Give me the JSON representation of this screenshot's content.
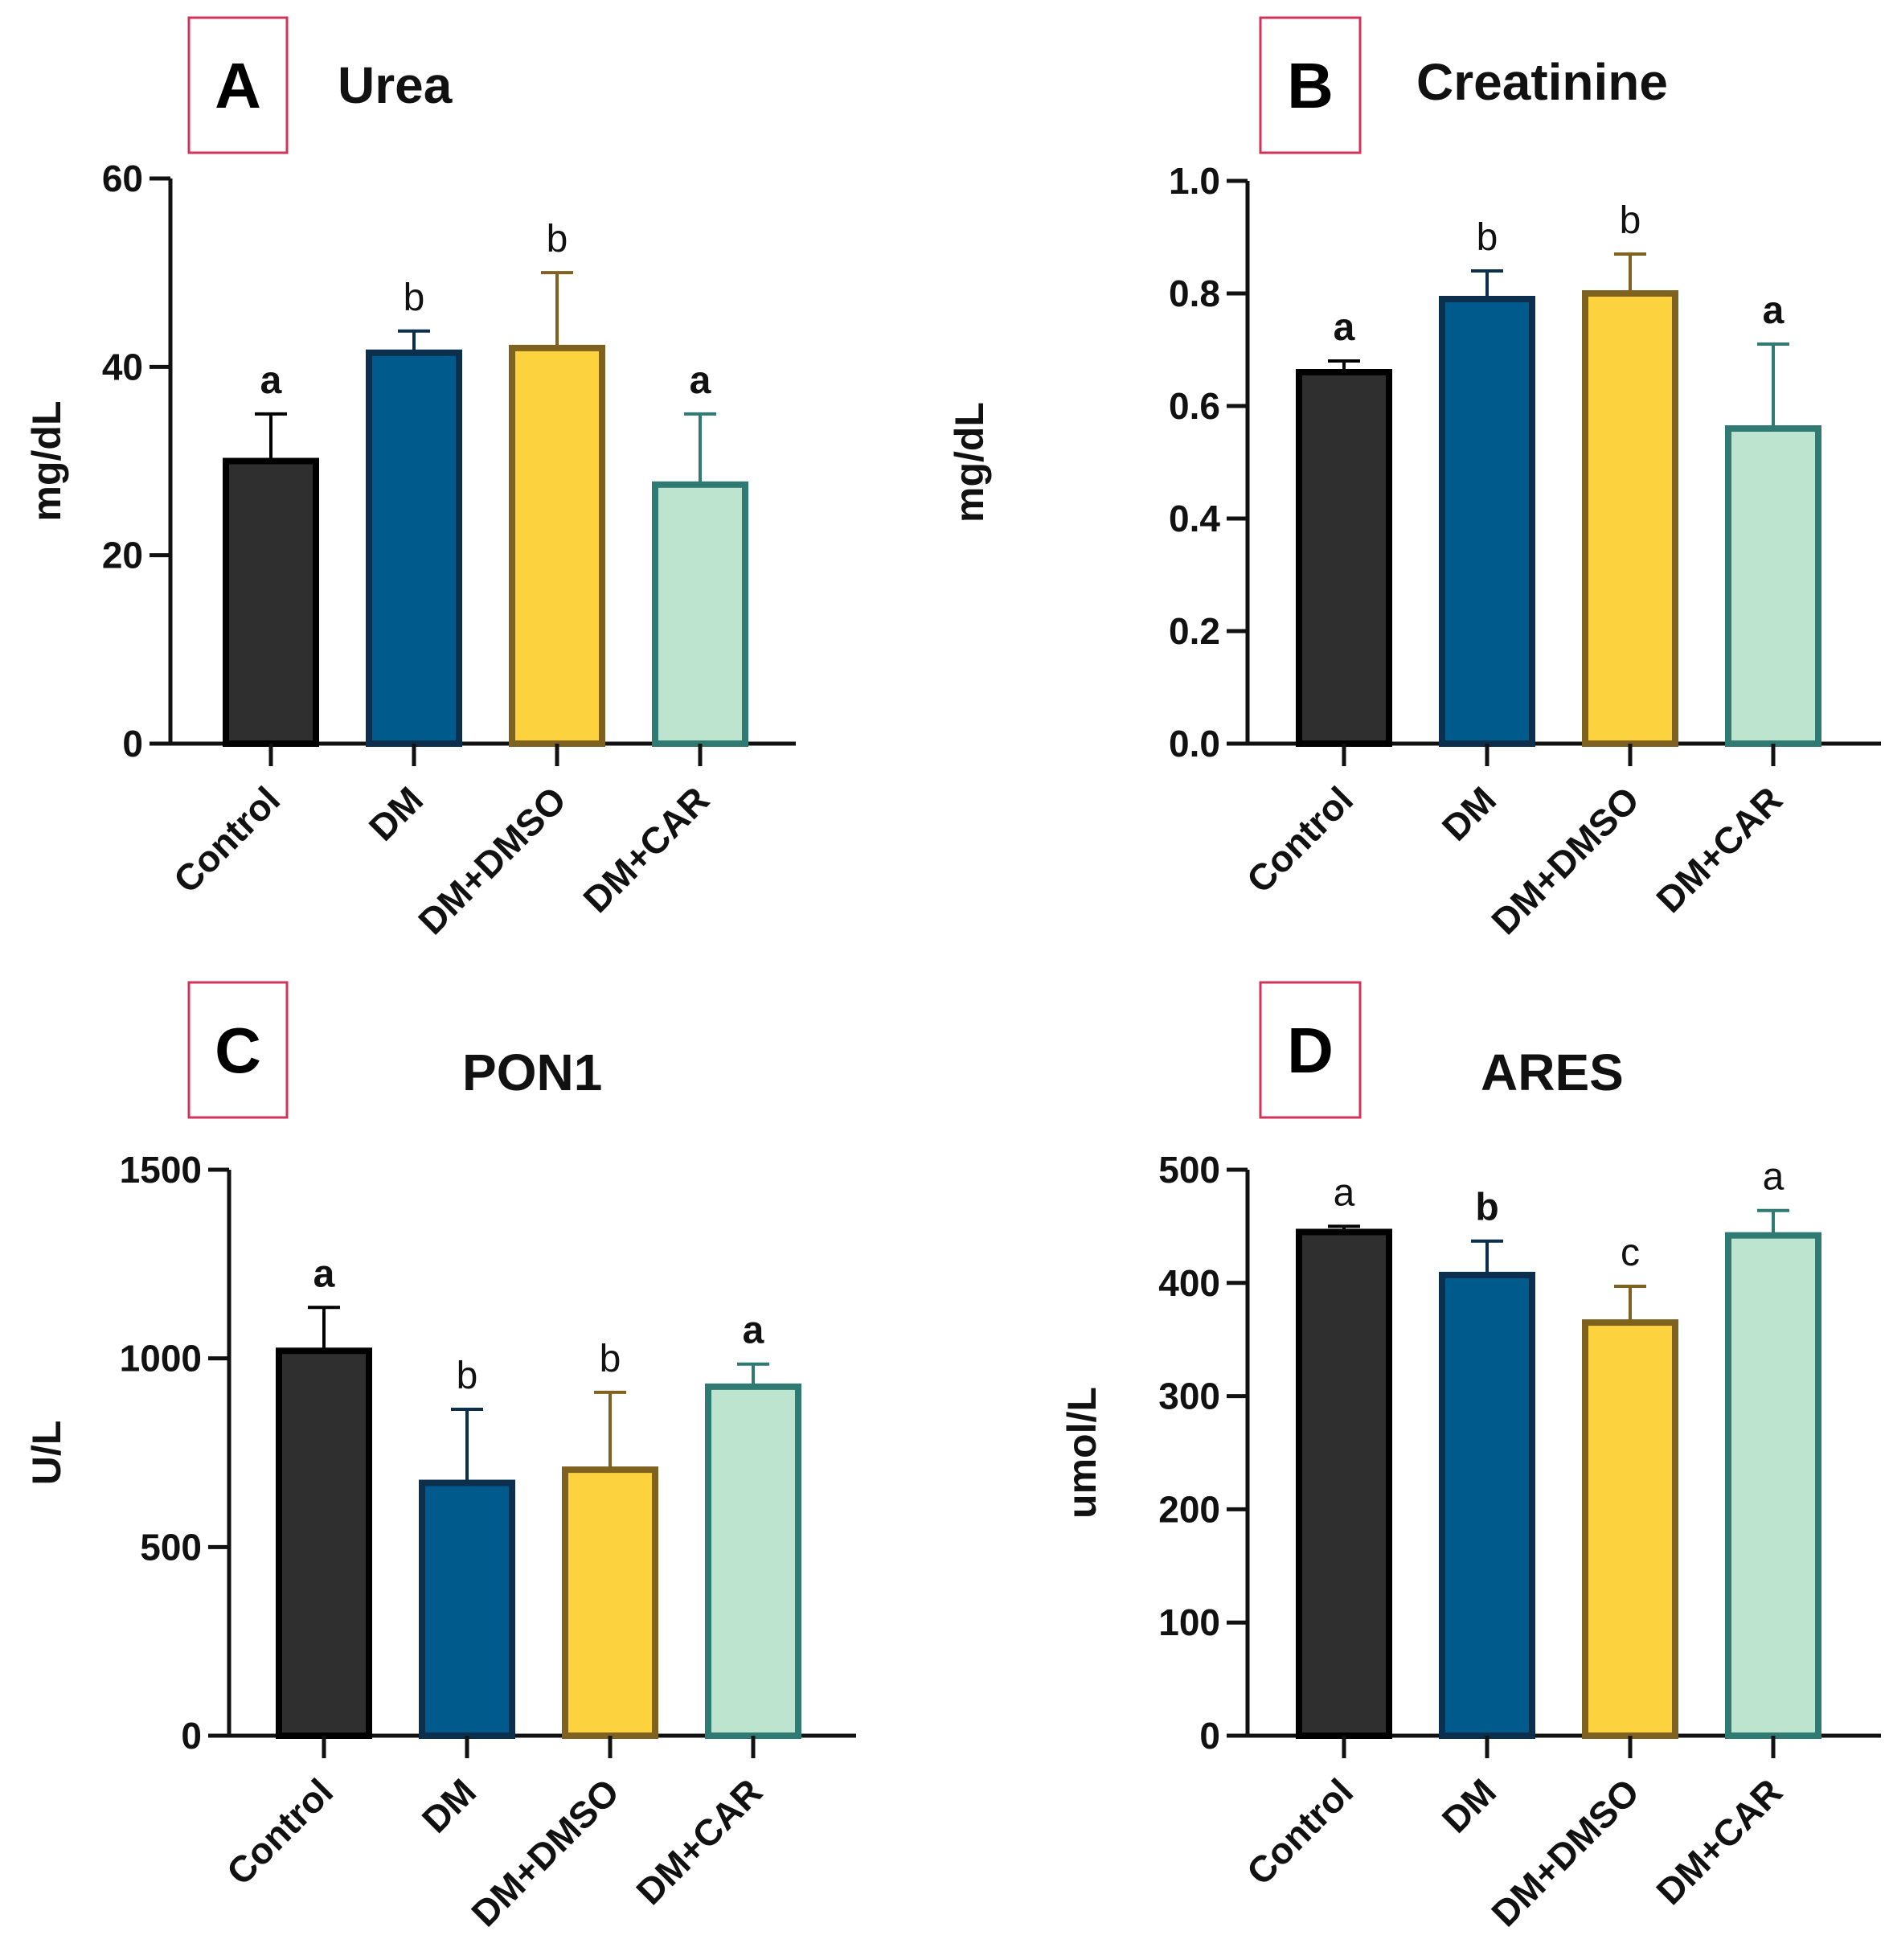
{
  "chart_data": [
    {
      "type": "bar",
      "panel_label": "A",
      "title": "Urea",
      "ylabel": "mg/dL",
      "xlabel": "",
      "ylim": [
        0,
        60
      ],
      "yticks": [
        0,
        20,
        40,
        60
      ],
      "ytick_labels": [
        "0",
        "20",
        "40",
        "60"
      ],
      "categories": [
        "Control",
        "DM",
        "DM+DMSO",
        "DM+CAR"
      ],
      "values": [
        30,
        41.5,
        42,
        27.5
      ],
      "errors": [
        5,
        2.3,
        8,
        7.5
      ],
      "significance": [
        "a",
        "b",
        "b",
        "a"
      ],
      "significance_bold": [
        true,
        false,
        false,
        true
      ]
    },
    {
      "type": "bar",
      "panel_label": "B",
      "title": "Creatinine",
      "ylabel": "mg/dL",
      "xlabel": "",
      "ylim": [
        0,
        1.0
      ],
      "yticks": [
        0,
        0.2,
        0.4,
        0.6,
        0.8,
        1.0
      ],
      "ytick_labels": [
        "0.0",
        "0.2",
        "0.4",
        "0.6",
        "0.8",
        "1.0"
      ],
      "categories": [
        "Control",
        "DM",
        "DM+DMSO",
        "DM+CAR"
      ],
      "values": [
        0.66,
        0.79,
        0.8,
        0.56
      ],
      "errors": [
        0.02,
        0.05,
        0.07,
        0.15
      ],
      "significance": [
        "a",
        "b",
        "b",
        "a"
      ],
      "significance_bold": [
        true,
        false,
        false,
        true
      ]
    },
    {
      "type": "bar",
      "panel_label": "C",
      "title": "PON1",
      "ylabel": "U/L",
      "xlabel": "",
      "ylim": [
        0,
        1500
      ],
      "yticks": [
        0,
        500,
        1000,
        1500
      ],
      "ytick_labels": [
        "0",
        "500",
        "1000",
        "1500"
      ],
      "categories": [
        "Control",
        "DM",
        "DM+DMSO",
        "DM+CAR"
      ],
      "values": [
        1020,
        670,
        705,
        925
      ],
      "errors": [
        115,
        195,
        205,
        60
      ],
      "significance": [
        "a",
        "b",
        "b",
        "a"
      ],
      "significance_bold": [
        true,
        false,
        false,
        true
      ]
    },
    {
      "type": "bar",
      "panel_label": "D",
      "title": "ARES",
      "ylabel": "umol/L",
      "xlabel": "",
      "ylim": [
        0,
        500
      ],
      "yticks": [
        0,
        100,
        200,
        300,
        400,
        500
      ],
      "ytick_labels": [
        "0",
        "100",
        "200",
        "300",
        "400",
        "500"
      ],
      "categories": [
        "Control",
        "DM",
        "DM+DMSO",
        "DM+CAR"
      ],
      "values": [
        445,
        407,
        365,
        442
      ],
      "errors": [
        5,
        30,
        32,
        22
      ],
      "significance": [
        "a",
        "b",
        "c",
        "a"
      ],
      "significance_bold": [
        false,
        true,
        false,
        false
      ]
    }
  ],
  "series_colors": {
    "fills": [
      "#2f2f2f",
      "#005a8c",
      "#fdd23f",
      "#bde4cf"
    ],
    "strokes": [
      "#000000",
      "#0b2f4d",
      "#7f6220",
      "#2f7a72"
    ]
  },
  "panel_label_box_color": "#d2335a"
}
